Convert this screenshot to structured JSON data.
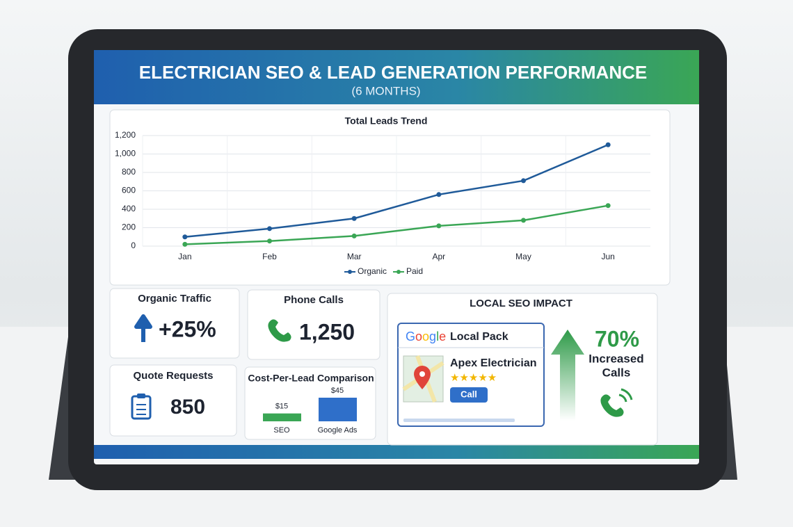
{
  "header": {
    "title": "ELECTRICIAN SEO & LEAD GENERATION PERFORMANCE",
    "subtitle": "(6 MONTHS)"
  },
  "chart_data": [
    {
      "type": "line",
      "title": "Total Leads Trend",
      "categories": [
        "Jan",
        "Feb",
        "Mar",
        "Apr",
        "May",
        "Jun"
      ],
      "series": [
        {
          "name": "Organic",
          "color": "#1f5a99",
          "values": [
            100,
            190,
            300,
            560,
            710,
            1100
          ]
        },
        {
          "name": "Paid",
          "color": "#3aa655",
          "values": [
            20,
            55,
            110,
            220,
            280,
            440
          ]
        }
      ],
      "ylim": [
        0,
        1200
      ],
      "yticks": [
        0,
        200,
        400,
        600,
        800,
        {
          "value": 1000,
          "label": "1,000"
        },
        {
          "value": 1200,
          "label": "1,200"
        }
      ],
      "grid": true,
      "legend": "bottom"
    },
    {
      "type": "bar",
      "title": "Cost-Per-Lead Comparison",
      "categories": [
        "SEO",
        "Google Ads"
      ],
      "values": [
        15,
        45
      ],
      "value_labels": [
        "$15",
        "$45"
      ],
      "colors": [
        "#3aa655",
        "#2f6fc9"
      ]
    }
  ],
  "kpis": [
    {
      "label": "Organic Traffic",
      "value": "+25%"
    },
    {
      "label": "Phone Calls",
      "value": "1,250"
    },
    {
      "label": "Quote Requests",
      "value": "850"
    }
  ],
  "local_seo": {
    "title": "LOCAL SEO IMPACT",
    "google": "Google",
    "pack": "Local Pack",
    "business": "Apex Electrician",
    "button": "Call",
    "stat": "70%",
    "stat_line_1": "Increased",
    "stat_line_2": "Calls"
  }
}
